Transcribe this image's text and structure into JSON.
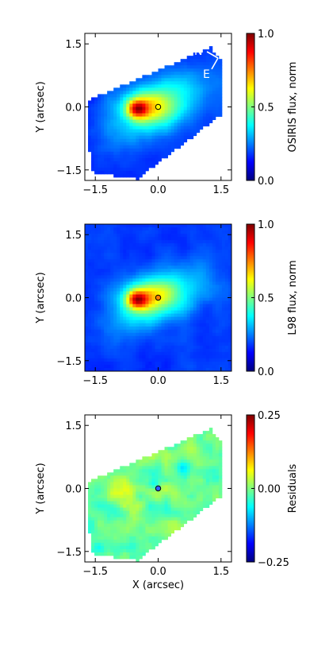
{
  "colormap": [
    "#00007f",
    "#0000ff",
    "#007fff",
    "#00ffff",
    "#7fff7f",
    "#ffff00",
    "#ff7f00",
    "#ff0000",
    "#7f0000"
  ],
  "compass": {
    "north_label": "N",
    "east_label": "E",
    "color": "#ffffff"
  },
  "chart_data": [
    {
      "type": "heatmap",
      "name": "osiris",
      "title": "",
      "xlabel": "",
      "ylabel": "Y (arcsec)",
      "xlim": [
        -1.75,
        1.75
      ],
      "ylim": [
        -1.75,
        1.75
      ],
      "x_ticks": [
        -1.5,
        0.0,
        1.5
      ],
      "x_tick_labels": [
        "−1.5",
        "0.0",
        "1.5"
      ],
      "y_ticks": [
        -1.5,
        0.0,
        1.5
      ],
      "y_tick_labels": [
        "−1.5",
        "0.0",
        "1.5"
      ],
      "colorbar_label": "OSIRIS flux, norm",
      "colorbar_range": [
        0.0,
        1.0
      ],
      "colorbar_ticks": [
        0.0,
        0.5,
        1.0
      ],
      "colorbar_tick_labels": [
        "0.0",
        "0.5",
        "1.0"
      ],
      "footprint": "slanted",
      "peak": [
        -0.5,
        -0.05
      ],
      "center_marker": [
        0.0,
        0.0
      ],
      "marker_color": "#ffff00"
    },
    {
      "type": "heatmap",
      "name": "l98",
      "title": "",
      "xlabel": "",
      "ylabel": "Y (arcsec)",
      "xlim": [
        -1.75,
        1.75
      ],
      "ylim": [
        -1.75,
        1.75
      ],
      "x_ticks": [
        -1.5,
        0.0,
        1.5
      ],
      "x_tick_labels": [
        "−1.5",
        "0.0",
        "1.5"
      ],
      "y_ticks": [
        -1.5,
        0.0,
        1.5
      ],
      "y_tick_labels": [
        "−1.5",
        "0.0",
        "1.5"
      ],
      "colorbar_label": "L98 flux, norm",
      "colorbar_range": [
        0.0,
        1.0
      ],
      "colorbar_ticks": [
        0.0,
        0.5,
        1.0
      ],
      "colorbar_tick_labels": [
        "0.0",
        "0.5",
        "1.0"
      ],
      "footprint": "full",
      "peak": [
        -0.5,
        -0.05
      ],
      "center_marker": [
        0.0,
        0.0
      ],
      "marker_color": "#ff7f00"
    },
    {
      "type": "heatmap",
      "name": "residuals",
      "title": "",
      "xlabel": "X (arcsec)",
      "ylabel": "Y (arcsec)",
      "xlim": [
        -1.75,
        1.75
      ],
      "ylim": [
        -1.75,
        1.75
      ],
      "x_ticks": [
        -1.5,
        0.0,
        1.5
      ],
      "x_tick_labels": [
        "−1.5",
        "0.0",
        "1.5"
      ],
      "y_ticks": [
        -1.5,
        0.0,
        1.5
      ],
      "y_tick_labels": [
        "−1.5",
        "0.0",
        "1.5"
      ],
      "colorbar_label": "Residuals",
      "colorbar_range": [
        -0.25,
        0.25
      ],
      "colorbar_ticks": [
        -0.25,
        0.0,
        0.25
      ],
      "colorbar_tick_labels": [
        "−0.25",
        "0.00",
        "0.25"
      ],
      "footprint": "slanted",
      "peak": [
        -0.5,
        -0.05
      ],
      "center_marker": [
        0.0,
        0.0
      ],
      "marker_color": "#3060ff"
    }
  ]
}
